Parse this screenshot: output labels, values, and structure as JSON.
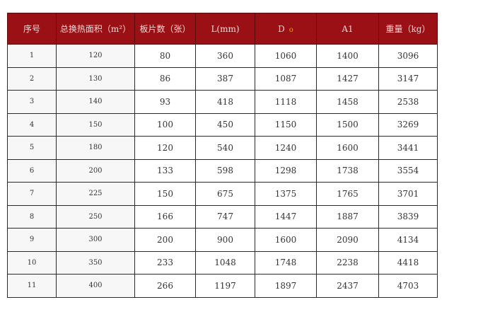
{
  "headers": [
    "序号",
    "总换热面积（m²）",
    "板片数（张）",
    "L(mm)",
    "D",
    "A1",
    "重量（kg）"
  ],
  "rows": [
    [
      "1",
      "120",
      "80",
      "360",
      "1060",
      "1400",
      "3096"
    ],
    [
      "2",
      "130",
      "86",
      "387",
      "1087",
      "1427",
      "3147"
    ],
    [
      "3",
      "140",
      "93",
      "418",
      "1118",
      "1458",
      "2538"
    ],
    [
      "4",
      "150",
      "100",
      "450",
      "1150",
      "1500",
      "3269"
    ],
    [
      "5",
      "180",
      "120",
      "540",
      "1240",
      "1600",
      "3441"
    ],
    [
      "6",
      "200",
      "133",
      "598",
      "1298",
      "1738",
      "3554"
    ],
    [
      "7",
      "225",
      "150",
      "675",
      "1375",
      "1765",
      "3701"
    ],
    [
      "8",
      "250",
      "166",
      "747",
      "1447",
      "1887",
      "3839"
    ],
    [
      "9",
      "300",
      "200",
      "900",
      "1600",
      "2090",
      "4134"
    ],
    [
      "10",
      "350",
      "233",
      "1048",
      "1748",
      "2238",
      "4418"
    ],
    [
      "11",
      "400",
      "266",
      "1197",
      "1897",
      "2437",
      "4703"
    ]
  ],
  "colors": {
    "header_bg": "#9b1014",
    "header_text": "#f3d6d6"
  }
}
